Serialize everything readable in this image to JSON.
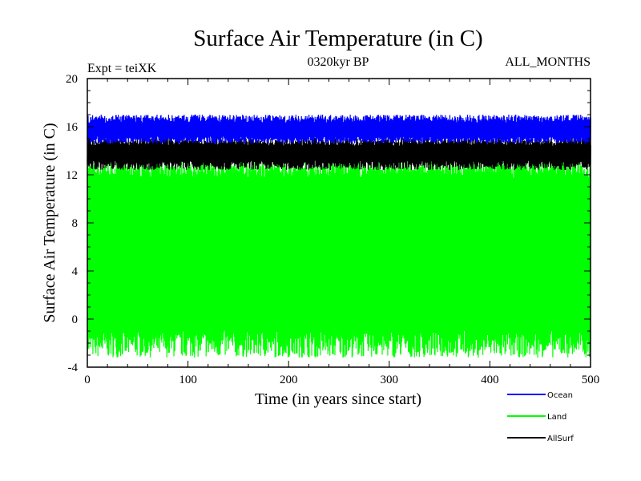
{
  "chart_data": {
    "type": "line",
    "title": "Surface Air Temperature (in C)",
    "subtitle_left": "Expt = teiXK",
    "subtitle_center": "0320kyr BP",
    "subtitle_right": "ALL_MONTHS",
    "xlabel": "Time (in years since start)",
    "ylabel": "Surface Air Temperature (in C)",
    "xlim": [
      0,
      500
    ],
    "ylim": [
      -4,
      20
    ],
    "x_ticks": [
      "0",
      "100",
      "200",
      "300",
      "400",
      "500"
    ],
    "y_ticks": [
      "-4",
      "0",
      "4",
      "8",
      "12",
      "16",
      "20"
    ],
    "grid": false,
    "legend_position": "bottom-right",
    "colors": {
      "Ocean": "#0000ff",
      "Land": "#00ff00",
      "AllSurf": "#000000"
    },
    "series": [
      {
        "name": "Ocean",
        "min_range": [
          14.6,
          15.2
        ],
        "max_range": [
          16.3,
          17.0
        ]
      },
      {
        "name": "Land",
        "min_range": [
          -3.2,
          -0.9
        ],
        "max_range": [
          11.7,
          13.3
        ]
      },
      {
        "name": "AllSurf",
        "min_range": [
          12.4,
          13.2
        ],
        "max_range": [
          14.4,
          15.1
        ]
      }
    ]
  }
}
